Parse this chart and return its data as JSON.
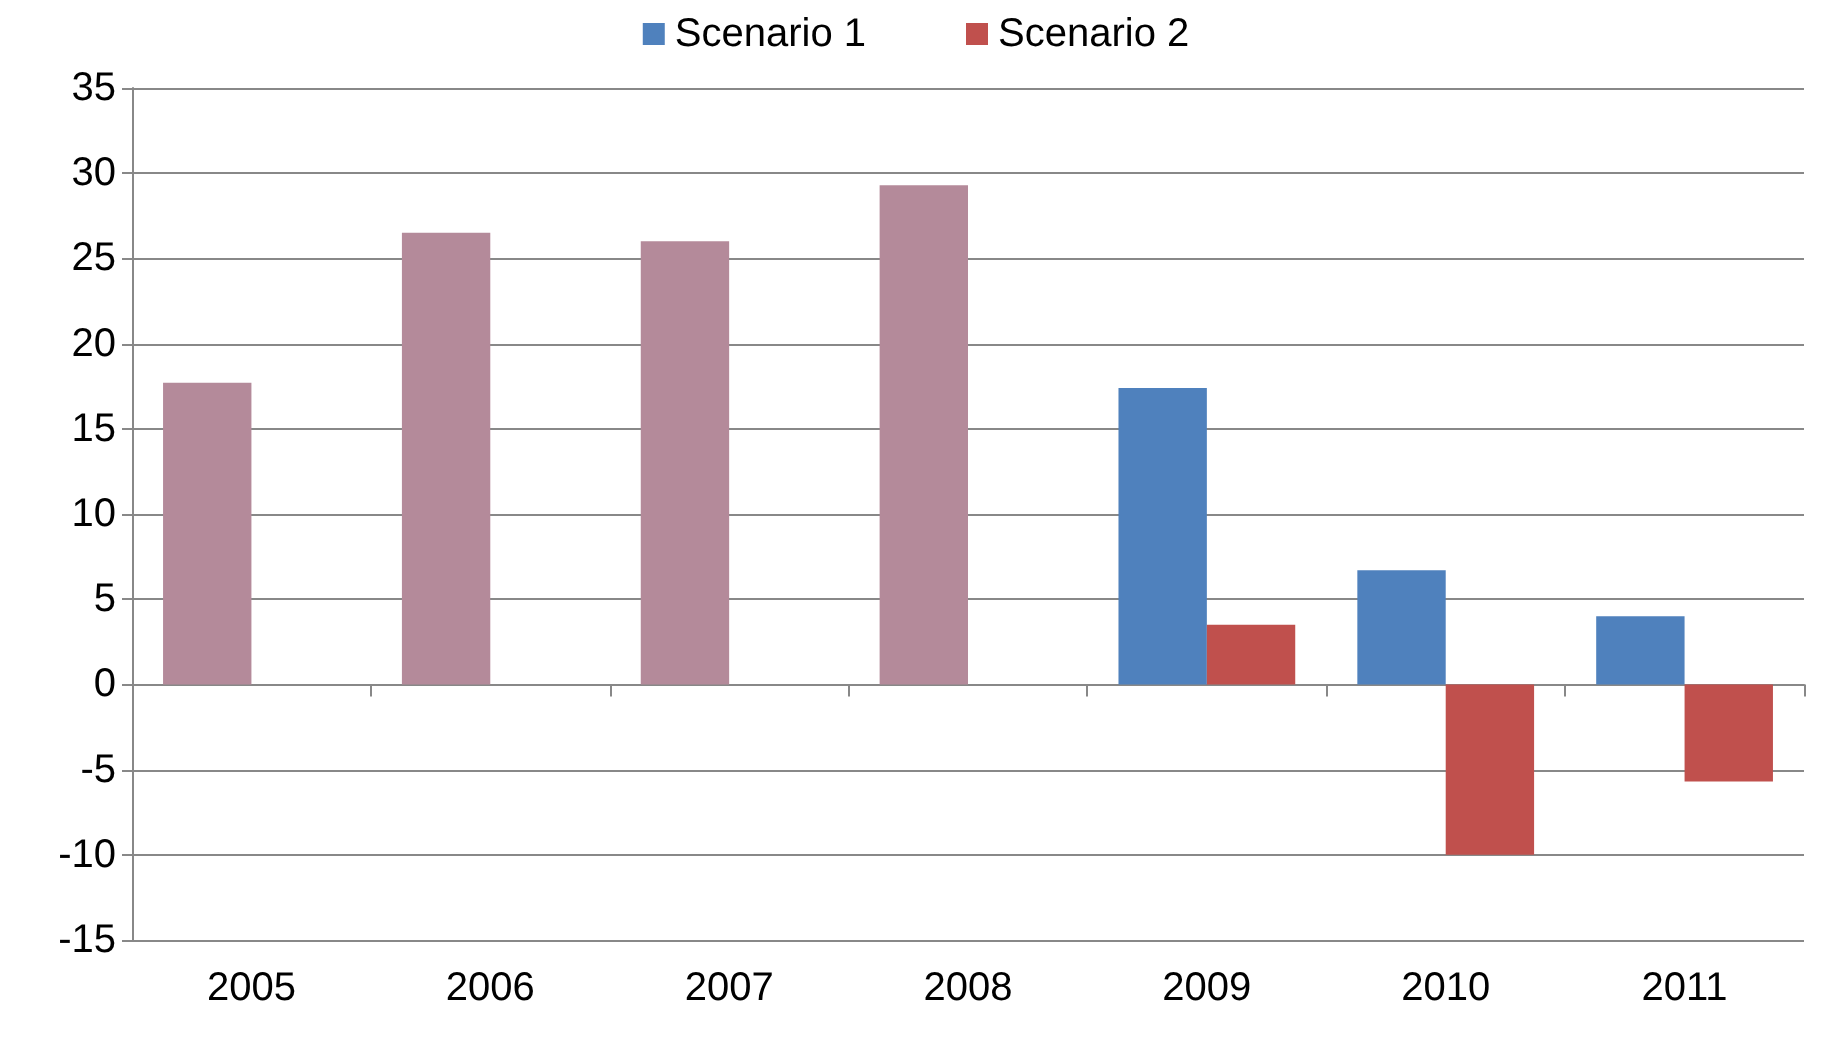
{
  "chart_data": {
    "type": "bar",
    "categories": [
      "2005",
      "2006",
      "2007",
      "2008",
      "2009",
      "2010",
      "2011"
    ],
    "series": [
      {
        "name": "Scenario 1",
        "color": "#4f81bd",
        "colors": [
          "#b48a9a",
          "#b48a9a",
          "#b48a9a",
          "#b48a9a",
          "#4f81bd",
          "#4f81bd",
          "#4f81bd"
        ],
        "values": [
          17.7,
          26.5,
          26.0,
          29.3,
          17.4,
          6.7,
          4.0
        ]
      },
      {
        "name": "Scenario 2",
        "color": "#c0504d",
        "values": [
          null,
          null,
          null,
          null,
          3.5,
          -10.0,
          -5.7
        ]
      }
    ],
    "ylim": [
      -15,
      35
    ],
    "yticks": [
      -15,
      -10,
      -5,
      0,
      5,
      10,
      15,
      20,
      25,
      30,
      35
    ],
    "grid": "y",
    "legend": "top"
  }
}
